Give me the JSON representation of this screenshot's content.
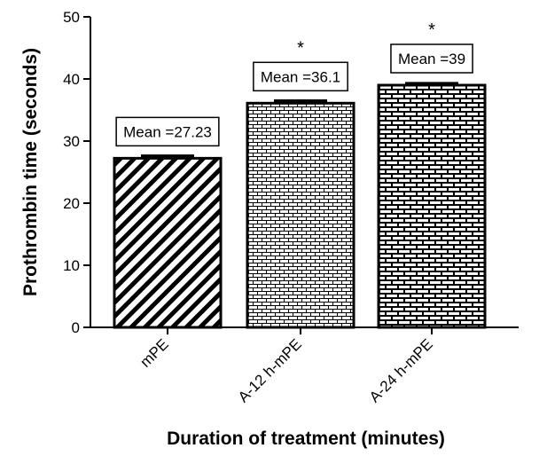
{
  "chart_data": {
    "type": "bar",
    "categories": [
      "mPE",
      "A-12 h-mPE",
      "A-24 h-mPE"
    ],
    "values": [
      27.23,
      36.1,
      39
    ],
    "errors": [
      0.4,
      0.4,
      0.3
    ],
    "patterns": [
      "diagonal-stripes",
      "fine-brick",
      "coarse-brick"
    ],
    "annotations": [
      {
        "text": "Mean =27.23",
        "significance": ""
      },
      {
        "text": "Mean =36.1",
        "significance": "*"
      },
      {
        "text": "Mean =39",
        "significance": "*"
      }
    ],
    "xlabel": "Duration of treatment (minutes)",
    "ylabel": "Prothrombin time (seconds)",
    "ylim": [
      0,
      50
    ],
    "yticks": [
      0,
      10,
      20,
      30,
      40,
      50
    ],
    "grid": false,
    "legend": "none"
  }
}
